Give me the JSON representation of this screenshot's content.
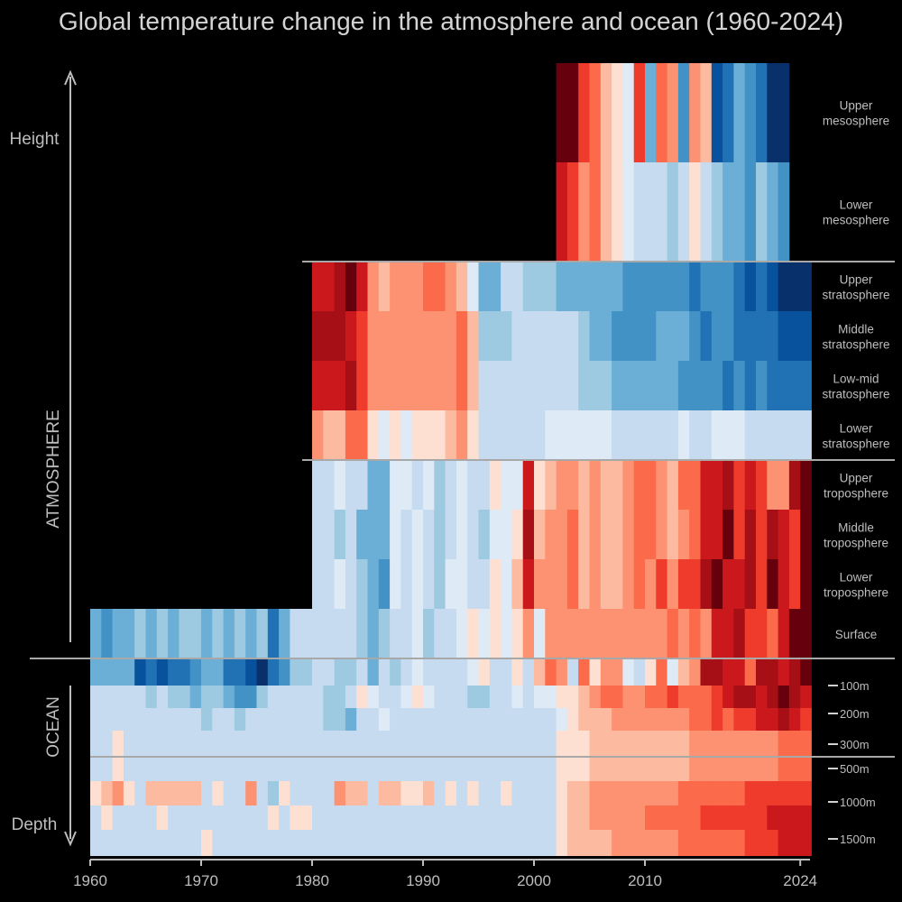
{
  "chart_data": {
    "type": "heatmap",
    "title": "Global temperature change in the atmosphere and ocean (1960-2024)",
    "x_ticks": [
      1960,
      1970,
      1980,
      1990,
      2000,
      2010,
      2024
    ],
    "side_labels": {
      "height": "Height",
      "depth": "Depth",
      "atmosphere": "ATMOSPHERE",
      "ocean": "OCEAN"
    },
    "colorscale": [
      "#08306b",
      "#08519c",
      "#2171b5",
      "#4292c6",
      "#6baed6",
      "#9ecae1",
      "#c6dbef",
      "#deebf7",
      "#fee0d2",
      "#fcbba1",
      "#fc9272",
      "#fb6a4a",
      "#ef3b2c",
      "#cb181d",
      "#a50f15",
      "#67000d"
    ],
    "value_scale": "anomaly index, -7 (strong cooling) to +8 (strong warming)",
    "rows": [
      {
        "label": "Upper\nmesosphere",
        "start": 2002,
        "end": 2022,
        "group": "mesosphere",
        "values": [
          8,
          8,
          5,
          4,
          2,
          1,
          0,
          5,
          -3,
          4,
          3,
          -4,
          3,
          2,
          -6,
          -5,
          -3,
          -4,
          -5,
          -7,
          -7
        ]
      },
      {
        "label": "Lower\nmesosphere",
        "start": 2002,
        "end": 2022,
        "group": "mesosphere",
        "values": [
          6,
          5,
          3,
          4,
          2,
          1,
          0,
          -1,
          -1,
          -1,
          -2,
          -1,
          1,
          -1,
          -2,
          -3,
          -3,
          -4,
          -2,
          -3,
          -4
        ]
      },
      {
        "label": "Upper\nstratosphere",
        "start": 1980,
        "end": 2024,
        "group": "stratosphere",
        "values": [
          6,
          6,
          7,
          8,
          6,
          3,
          2,
          3,
          3,
          3,
          4,
          4,
          3,
          2,
          0,
          -3,
          -3,
          -1,
          -1,
          -2,
          -2,
          -2,
          -3,
          -3,
          -3,
          -3,
          -3,
          -3,
          -4,
          -4,
          -4,
          -4,
          -4,
          -4,
          -5,
          -4,
          -4,
          -4,
          -5,
          -6,
          -5,
          -6,
          -7,
          -7,
          -7
        ]
      },
      {
        "label": "Middle\nstratosphere",
        "start": 1980,
        "end": 2024,
        "group": "stratosphere",
        "values": [
          7,
          7,
          7,
          6,
          5,
          3,
          3,
          3,
          3,
          3,
          3,
          3,
          3,
          4,
          2,
          -2,
          -2,
          -2,
          -1,
          -1,
          -1,
          -1,
          -1,
          -1,
          -2,
          -3,
          -3,
          -4,
          -4,
          -4,
          -4,
          -3,
          -3,
          -3,
          -4,
          -5,
          -4,
          -4,
          -5,
          -5,
          -5,
          -5,
          -6,
          -6,
          -6
        ]
      },
      {
        "label": "Low-mid\nstratosphere",
        "start": 1980,
        "end": 2024,
        "group": "stratosphere",
        "values": [
          6,
          6,
          6,
          7,
          5,
          3,
          3,
          3,
          3,
          3,
          3,
          3,
          3,
          4,
          2,
          -1,
          -1,
          -1,
          -1,
          -1,
          -1,
          -1,
          -1,
          -1,
          -2,
          -2,
          -2,
          -3,
          -3,
          -3,
          -3,
          -3,
          -3,
          -4,
          -4,
          -4,
          -4,
          -5,
          -4,
          -5,
          -4,
          -5,
          -5,
          -5,
          -5
        ]
      },
      {
        "label": "Lower\nstratosphere",
        "start": 1980,
        "end": 2024,
        "group": "stratosphere",
        "values": [
          3,
          2,
          2,
          4,
          4,
          1,
          0,
          1,
          0,
          1,
          1,
          1,
          2,
          3,
          1,
          -1,
          -1,
          -1,
          -1,
          -1,
          -1,
          0,
          0,
          0,
          0,
          0,
          0,
          -1,
          -1,
          -1,
          -1,
          -1,
          -1,
          0,
          -1,
          -1,
          0,
          0,
          0,
          -1,
          -1,
          -1,
          -1,
          -1,
          -1
        ]
      },
      {
        "label": "Upper\ntroposphere",
        "start": 1980,
        "end": 2024,
        "group": "troposphere",
        "values": [
          -1,
          -1,
          0,
          -1,
          -1,
          -3,
          -3,
          0,
          0,
          -1,
          0,
          -2,
          -1,
          0,
          -1,
          -1,
          1,
          0,
          0,
          6,
          1,
          2,
          3,
          3,
          2,
          3,
          2,
          2,
          3,
          4,
          4,
          3,
          2,
          4,
          4,
          6,
          6,
          7,
          5,
          6,
          5,
          3,
          3,
          7,
          8
        ]
      },
      {
        "label": "Middle\ntroposphere",
        "start": 1980,
        "end": 2024,
        "group": "troposphere",
        "values": [
          -1,
          -1,
          -2,
          -1,
          -3,
          -3,
          -3,
          0,
          -1,
          0,
          -1,
          -2,
          -1,
          0,
          -1,
          -2,
          0,
          0,
          1,
          7,
          2,
          3,
          3,
          4,
          2,
          3,
          2,
          2,
          3,
          4,
          4,
          3,
          2,
          3,
          4,
          6,
          6,
          8,
          5,
          7,
          5,
          7,
          6,
          5,
          8
        ]
      },
      {
        "label": "Lower\ntroposphere",
        "start": 1980,
        "end": 2024,
        "group": "troposphere",
        "values": [
          -1,
          -1,
          0,
          -1,
          -2,
          -3,
          -4,
          0,
          -1,
          0,
          -1,
          -2,
          0,
          0,
          -1,
          -1,
          1,
          0,
          2,
          6,
          3,
          3,
          3,
          4,
          2,
          3,
          2,
          2,
          3,
          4,
          3,
          5,
          3,
          5,
          5,
          7,
          8,
          6,
          6,
          7,
          5,
          8,
          6,
          5,
          8
        ]
      },
      {
        "label": "Surface",
        "start": 1960,
        "end": 2024,
        "group": "surface",
        "values": [
          -3,
          -4,
          -3,
          -3,
          -2,
          -3,
          -2,
          -3,
          -2,
          -2,
          -3,
          -2,
          -3,
          -2,
          -3,
          -2,
          -5,
          -3,
          -1,
          -1,
          -1,
          -1,
          -1,
          -1,
          -2,
          -3,
          -2,
          -1,
          -1,
          0,
          -2,
          -1,
          -1,
          0,
          1,
          0,
          1,
          0,
          1,
          3,
          0,
          3,
          3,
          3,
          3,
          3,
          3,
          3,
          3,
          3,
          3,
          3,
          4,
          3,
          4,
          3,
          6,
          6,
          7,
          5,
          5,
          4,
          6,
          8,
          8
        ]
      },
      {
        "label": "100m",
        "start": 1960,
        "end": 2024,
        "group": "ocean",
        "values": [
          -3,
          -3,
          -3,
          -3,
          -6,
          -5,
          -6,
          -5,
          -5,
          -4,
          -3,
          -3,
          -5,
          -5,
          -6,
          -7,
          -5,
          -4,
          -2,
          -2,
          -1,
          -1,
          -2,
          -2,
          -1,
          -3,
          -1,
          -2,
          -1,
          0,
          -1,
          -1,
          -1,
          -1,
          0,
          1,
          -1,
          -1,
          1,
          -1,
          2,
          4,
          3,
          -1,
          4,
          1,
          3,
          3,
          0,
          -1,
          1,
          4,
          0,
          2,
          3,
          7,
          7,
          6,
          6,
          4,
          7,
          7,
          6,
          7,
          8
        ]
      },
      {
        "label": "",
        "start": 1960,
        "end": 2024,
        "group": "ocean",
        "values": [
          -1,
          -1,
          -1,
          -1,
          -1,
          -2,
          -1,
          -2,
          -2,
          -3,
          -2,
          -2,
          -3,
          -4,
          -4,
          -2,
          -1,
          -1,
          -1,
          -1,
          -1,
          -2,
          -2,
          -1,
          1,
          0,
          -1,
          -1,
          0,
          1,
          0,
          -1,
          -1,
          -1,
          -2,
          -2,
          -1,
          -1,
          0,
          -1,
          0,
          0,
          1,
          1,
          2,
          3,
          4,
          4,
          3,
          3,
          4,
          4,
          5,
          4,
          4,
          4,
          5,
          6,
          7,
          7,
          6,
          7,
          8,
          7,
          6
        ]
      },
      {
        "label": "200m",
        "start": 1960,
        "end": 2024,
        "group": "ocean",
        "values": [
          -1,
          -1,
          -1,
          -1,
          -1,
          -1,
          -1,
          -1,
          -1,
          -1,
          -2,
          -1,
          -1,
          -2,
          -1,
          -1,
          -1,
          -1,
          -1,
          -1,
          -1,
          -2,
          -2,
          -3,
          -1,
          -1,
          0,
          -1,
          -1,
          -1,
          -1,
          -1,
          -1,
          -1,
          -1,
          -1,
          -1,
          -1,
          -1,
          -1,
          -1,
          -1,
          0,
          1,
          2,
          2,
          2,
          3,
          3,
          3,
          3,
          3,
          3,
          3,
          4,
          4,
          5,
          4,
          5,
          5,
          6,
          6,
          7,
          6,
          5
        ]
      },
      {
        "label": "",
        "start": 1960,
        "end": 2024,
        "group": "ocean",
        "values": [
          -1,
          -1,
          1,
          -1,
          -1,
          -1,
          -1,
          -1,
          -1,
          -1,
          -1,
          -1,
          -1,
          -1,
          -1,
          -1,
          -1,
          -1,
          -1,
          -1,
          -1,
          -1,
          -1,
          -1,
          -1,
          -1,
          -1,
          -1,
          -1,
          -1,
          -1,
          -1,
          -1,
          -1,
          -1,
          -1,
          -1,
          -1,
          -1,
          -1,
          -1,
          -1,
          1,
          1,
          1,
          2,
          2,
          2,
          2,
          2,
          2,
          2,
          2,
          2,
          3,
          3,
          3,
          3,
          3,
          3,
          3,
          3,
          4,
          4,
          4
        ]
      },
      {
        "label": "300m",
        "start": 1960,
        "end": 2024,
        "group": "ocean",
        "values": [
          -1,
          -1,
          1,
          -1,
          -1,
          -1,
          -1,
          -1,
          -1,
          -1,
          -1,
          -1,
          -1,
          -1,
          -1,
          -1,
          -1,
          -1,
          -1,
          -1,
          -1,
          -1,
          -1,
          -1,
          -1,
          -1,
          -1,
          -1,
          -1,
          -1,
          -1,
          -1,
          -1,
          -1,
          -1,
          -1,
          -1,
          -1,
          -1,
          -1,
          -1,
          -1,
          1,
          1,
          1,
          2,
          2,
          2,
          2,
          2,
          2,
          2,
          2,
          2,
          3,
          3,
          3,
          3,
          3,
          3,
          3,
          3,
          4,
          4,
          4
        ]
      },
      {
        "label": "500m",
        "start": 1960,
        "end": 2024,
        "group": "ocean",
        "values": [
          1,
          2,
          3,
          1,
          -1,
          2,
          2,
          2,
          2,
          2,
          -1,
          1,
          -1,
          -1,
          3,
          -1,
          -2,
          1,
          -1,
          -1,
          -1,
          -1,
          3,
          2,
          2,
          -1,
          2,
          2,
          1,
          1,
          2,
          -1,
          1,
          -1,
          1,
          -1,
          -1,
          1,
          -1,
          -1,
          -1,
          -1,
          1,
          2,
          2,
          3,
          3,
          3,
          3,
          3,
          3,
          3,
          3,
          4,
          4,
          4,
          4,
          4,
          4,
          5,
          5,
          5,
          5,
          5,
          5
        ]
      },
      {
        "label": "",
        "start": 1960,
        "end": 2024,
        "group": "ocean",
        "values": [
          -1,
          1,
          -1,
          -1,
          -1,
          -1,
          1,
          -1,
          -1,
          -1,
          -1,
          -1,
          -1,
          -1,
          -1,
          -1,
          1,
          -1,
          1,
          1,
          -1,
          -1,
          -1,
          -1,
          -1,
          -1,
          -1,
          -1,
          -1,
          -1,
          -1,
          -1,
          -1,
          -1,
          -1,
          -1,
          -1,
          -1,
          -1,
          -1,
          -1,
          -1,
          1,
          2,
          2,
          3,
          3,
          3,
          3,
          3,
          4,
          4,
          4,
          4,
          4,
          5,
          5,
          5,
          5,
          5,
          5,
          6,
          6,
          6,
          6
        ]
      },
      {
        "label": "1000m",
        "start": 1960,
        "end": 2024,
        "group": "ocean",
        "values": [
          -1,
          -1,
          -1,
          -1,
          -1,
          -1,
          -1,
          -1,
          -1,
          -1,
          1,
          -1,
          -1,
          -1,
          -1,
          -1,
          -1,
          -1,
          -1,
          -1,
          -1,
          -1,
          -1,
          -1,
          -1,
          -1,
          -1,
          -1,
          -1,
          -1,
          -1,
          -1,
          -1,
          -1,
          -1,
          -1,
          -1,
          -1,
          -1,
          -1,
          -1,
          -1,
          1,
          2,
          2,
          2,
          2,
          3,
          3,
          3,
          3,
          3,
          3,
          4,
          4,
          4,
          4,
          4,
          4,
          5,
          5,
          5,
          6,
          6,
          6
        ]
      },
      {
        "label": "",
        "start": 1960,
        "end": 2024,
        "group": "ocean",
        "values": [
          -2,
          -1,
          -1,
          -2,
          -1,
          -1,
          -2,
          -1,
          -1,
          -1,
          -1,
          -1,
          -1,
          -1,
          -1,
          -1,
          -1,
          -1,
          -1,
          -1,
          -1,
          -1,
          -1,
          -1,
          -1,
          -1,
          -1,
          -1,
          -1,
          -1,
          -1,
          -1,
          -1,
          -1,
          -1,
          -1,
          -1,
          -1,
          -1,
          -1,
          -1,
          1,
          1,
          2,
          2,
          2,
          2,
          2,
          2,
          2,
          3,
          3,
          3,
          3,
          3,
          3,
          4,
          4,
          4,
          4,
          4,
          4,
          4,
          5,
          5
        ]
      },
      {
        "label": "1500m",
        "start": 1960,
        "end": 2024,
        "group": "ocean",
        "values": [
          -1,
          -1,
          -1,
          -1,
          -1,
          -1,
          -1,
          -1,
          -1,
          -1,
          -1,
          -1,
          -1,
          -1,
          -1,
          -1,
          -1,
          -1,
          -1,
          -1,
          -1,
          -1,
          -1,
          -1,
          -1,
          -1,
          -1,
          -1,
          -1,
          -1,
          -1,
          -1,
          -1,
          -1,
          -1,
          -1,
          -1,
          -1,
          -1,
          -1,
          -1,
          -1,
          -1,
          1,
          1,
          2,
          1,
          2,
          2,
          3,
          3,
          3,
          3,
          4,
          4,
          4,
          4,
          4,
          4,
          4,
          4,
          4,
          4,
          4,
          4
        ]
      }
    ]
  }
}
